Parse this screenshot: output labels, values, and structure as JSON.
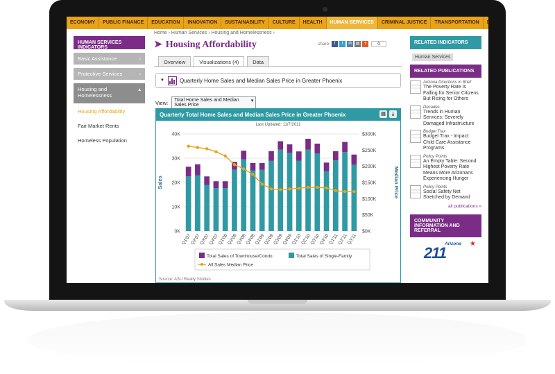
{
  "top_nav": [
    "ECONOMY",
    "PUBLIC FINANCE",
    "EDUCATION",
    "INNOVATION",
    "SUSTAINABILITY",
    "CULTURE",
    "HEALTH",
    "HUMAN SERVICES",
    "CRIMINAL JUSTICE",
    "TRANSPORTATION",
    "DEMOGRAPHICS"
  ],
  "top_nav_active": "HUMAN SERVICES",
  "left_sidebar": {
    "heading": "HUMAN SERVICES INDICATORS",
    "items": [
      "Basic Assistance",
      "Protective Services",
      "Housing and Homelessness"
    ],
    "expanded_item_line1": "Housing and",
    "expanded_item_line2": "Homelessness",
    "subitems": [
      "Housing Affordability",
      "Fair Market Rents",
      "Homeless Population"
    ]
  },
  "breadcrumb": "Home › Human Services › Housing and Homelessness ›",
  "page_title": "Housing Affordability",
  "share_label": "share:",
  "share_count": "0",
  "tabs": [
    "Overview",
    "Visualizations (4)",
    "Data"
  ],
  "visualization_title": "Quarterly Home Sales and Median Sales Price in Greater Phoenix",
  "view_label": "View:",
  "view_select": "Total Home Sales and Median Sales Price",
  "chart_header": "Quarterly Total Home Sales and Median Sales Price in Greater Phoenix",
  "last_updated": "Last Updated: 11/7/2011",
  "source_text": "Source: ASU Realty Studies",
  "chart_data": {
    "type": "bar",
    "categories": [
      "Q1'07",
      "Q2'07",
      "Q3'07",
      "Q4'07",
      "Q1'08",
      "Q2'08",
      "Q3'08",
      "Q4'08",
      "Q1'09",
      "Q2'09",
      "Q3'09",
      "Q4'09",
      "Q1'10",
      "Q2'10",
      "Q3'10",
      "Q4'10",
      "Q1'11",
      "Q2'11",
      "Q3'11"
    ],
    "series": [
      {
        "name": "Total Sales of Townhouse/Condo",
        "values": [
          4000,
          4500,
          3500,
          2800,
          2800,
          3200,
          3600,
          3000,
          2800,
          4000,
          3500,
          3500,
          3800,
          4500,
          4000,
          3600,
          3800,
          4200,
          4200
        ],
        "color": "#7a2c86"
      },
      {
        "name": "Total Sales of Single-Family",
        "values": [
          22500,
          23000,
          19000,
          17700,
          17700,
          25300,
          29500,
          25000,
          25200,
          28900,
          33500,
          32200,
          29000,
          33500,
          32000,
          24600,
          29100,
          32500,
          27300
        ],
        "color": "#2f9aa3"
      },
      {
        "name": "All Sales Median Price",
        "values": [
          262000,
          258000,
          254000,
          245000,
          232000,
          205000,
          192000,
          175000,
          145000,
          130000,
          128000,
          130000,
          132000,
          135000,
          135000,
          133000,
          125000,
          122000,
          122000
        ],
        "color": "#e8a317"
      }
    ],
    "ylabel": "Sales",
    "y2label": "Median Price",
    "ylim": [
      0,
      40000
    ],
    "y2lim": [
      0,
      300000
    ],
    "yticks": [
      "0K",
      "10K",
      "20K",
      "30K",
      "40K"
    ],
    "y2ticks": [
      "$0K",
      "$50K",
      "$100K",
      "$150K",
      "$200K",
      "$250K",
      "$300K"
    ],
    "legend": [
      "Total Sales of Townhouse/Condo",
      "Total Sales of Single-Family",
      "All Sales Median Price"
    ],
    "legend_position": "bottom",
    "grid": true
  },
  "right_sidebar": {
    "related_indicators_heading": "RELATED INDICATORS",
    "related_tag": "Human Services",
    "related_publications_heading": "RELATED PUBLICATIONS",
    "publications": [
      {
        "series": "Arizona Directions in Brief",
        "title": "The Poverty Rate Is Falling for Senior Citizens But Rising for Others"
      },
      {
        "series": "Decades",
        "title": "Trends in Human Services: Severely Damaged Infrastructure"
      },
      {
        "series": "Budget Trax",
        "title": "Budget Trax - Impact: Child Care Assistance Programs"
      },
      {
        "series": "Policy Points",
        "title": "An Empty Table: Second Highest Poverty Rate Means More Arizonans Experiencing Hunger"
      },
      {
        "series": "Policy Points",
        "title": "Social Safety Net Stretched by Demand"
      }
    ],
    "all_publications": "all publications »",
    "community_heading": "COMMUNITY INFORMATION AND REFERRAL",
    "logo_state": "Arizona",
    "logo_number": "211"
  }
}
